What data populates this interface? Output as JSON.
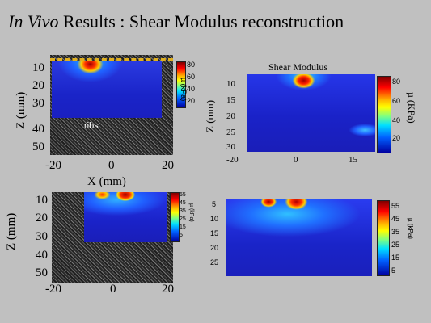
{
  "slide": {
    "title_italic": "In Vivo",
    "title_rest": " Results : Shear Modulus reconstruction"
  },
  "panel1": {
    "y_label": "Z (mm)",
    "y_ticks": [
      "10",
      "20",
      "30",
      "40",
      "50"
    ],
    "x_ticks": [
      "-20",
      "0",
      "20"
    ],
    "x_label": "X (mm)",
    "annotation": "ribs",
    "cbar_ticks": [
      "80",
      "60",
      "40",
      "20"
    ],
    "cbar_unit": "µ (kPa)"
  },
  "panel2": {
    "title": "Shear Modulus",
    "y_label": "Z (mm)",
    "y_ticks": [
      "10",
      "15",
      "20",
      "25",
      "30"
    ],
    "x_ticks": [
      "-20",
      "0",
      "15"
    ],
    "cbar_ticks": [
      "80",
      "60",
      "40",
      "20"
    ],
    "cbar_unit": "µ (KPa)"
  },
  "panel3": {
    "y_label": "Z (mm)",
    "y_ticks": [
      "10",
      "20",
      "30",
      "40",
      "50"
    ],
    "x_ticks": [
      "-20",
      "0",
      "20"
    ],
    "cbar_ticks": [
      "55",
      "45",
      "35",
      "25",
      "15",
      "5"
    ],
    "cbar_unit": "µ (kPa)"
  },
  "panel4": {
    "y_ticks": [
      "5",
      "10",
      "15",
      "20",
      "25"
    ],
    "cbar_ticks": [
      "55",
      "45",
      "35",
      "25",
      "15",
      "5"
    ],
    "cbar_unit": "µ (kPa)"
  }
}
